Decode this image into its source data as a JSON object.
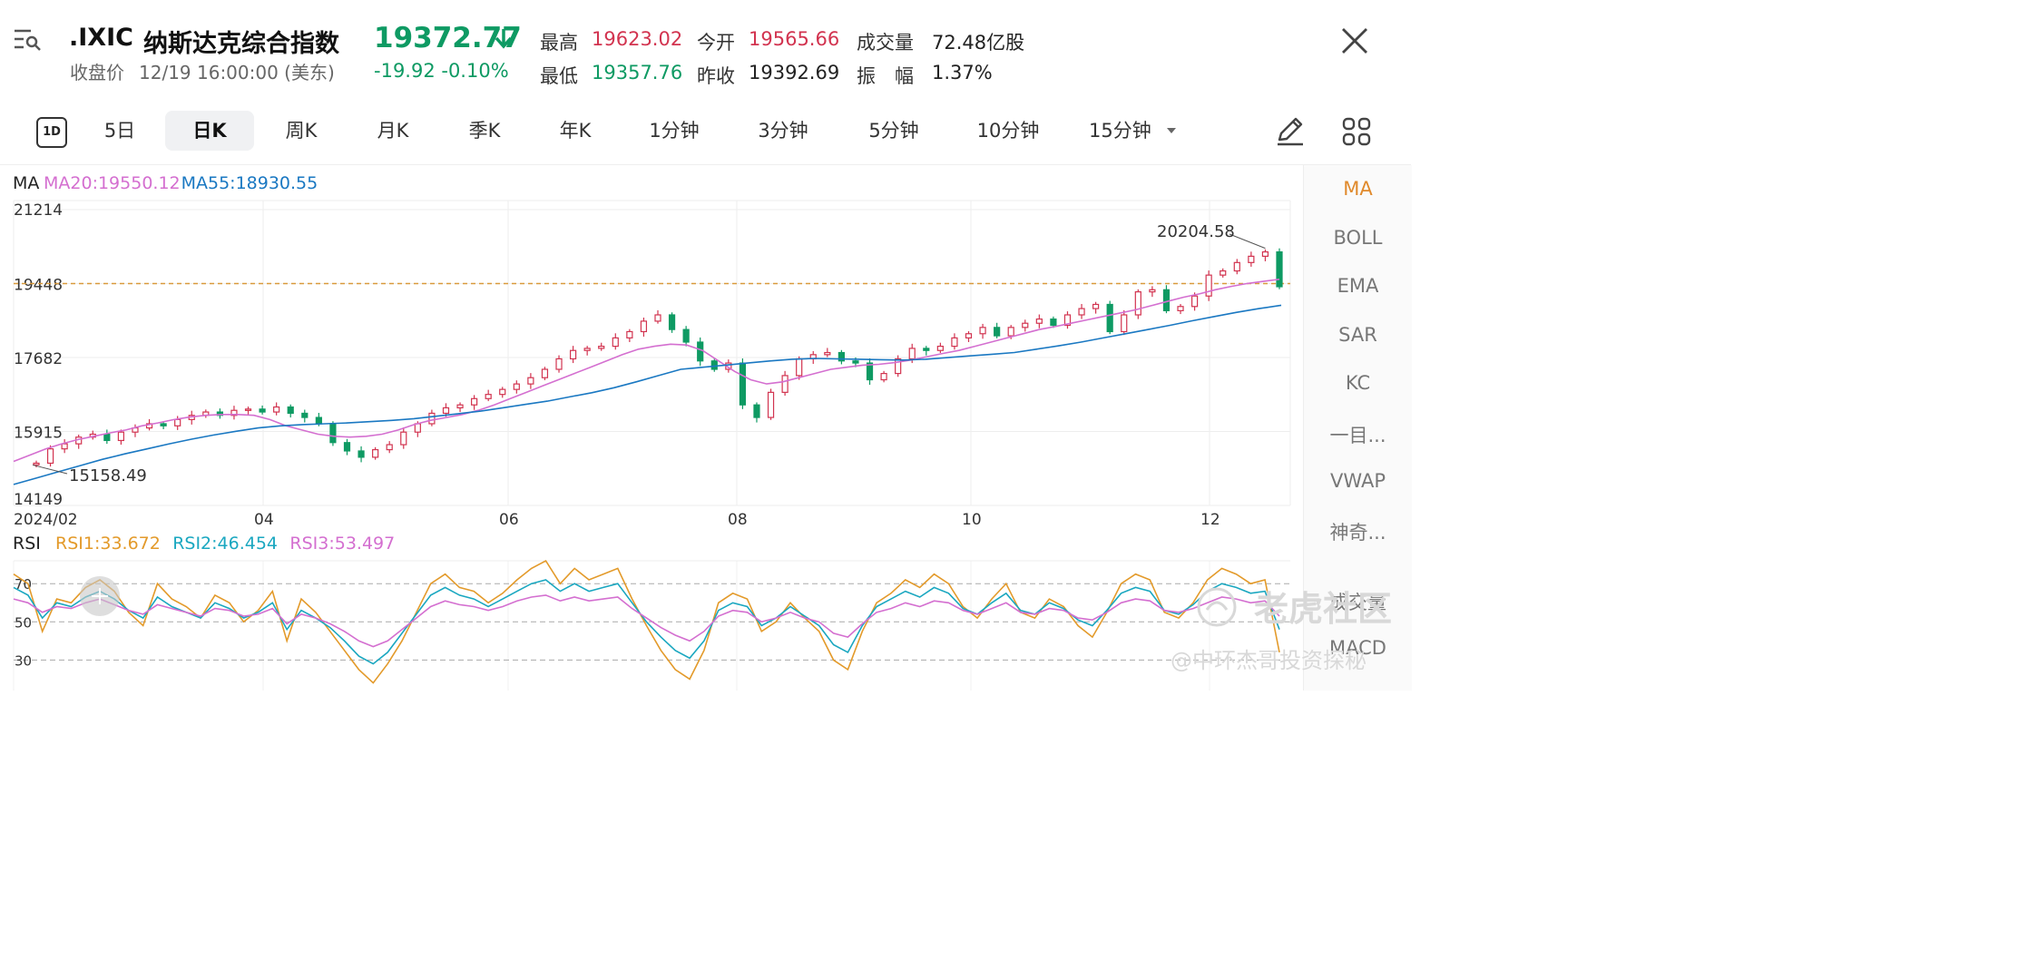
{
  "header": {
    "ticker": ".IXIC",
    "name": "纳斯达克综合指数",
    "price": "19372.77",
    "close_label": "收盘价",
    "close_time": "12/19 16:00:00 (美东)",
    "change": "-19.92 -0.10%",
    "stats": [
      {
        "label": "最高",
        "value": "19623.02",
        "color": "#d2334f"
      },
      {
        "label": "今开",
        "value": "19565.66",
        "color": "#d2334f"
      },
      {
        "label": "成交量",
        "value": "72.48亿股",
        "color": "#222222"
      },
      {
        "label": "最低",
        "value": "19357.76",
        "color": "#0e9a63"
      },
      {
        "label": "昨收",
        "value": "19392.69",
        "color": "#222222"
      },
      {
        "label": "振　幅",
        "value": "1.37%",
        "color": "#222222"
      }
    ]
  },
  "toolbar": {
    "tabs": [
      "5日",
      "日K",
      "周K",
      "月K",
      "季K",
      "年K",
      "1分钟",
      "3分钟",
      "5分钟",
      "10分钟",
      "15分钟"
    ],
    "active_tab": "日K",
    "one_day_label": "1D"
  },
  "sidebar": {
    "items": [
      "MA",
      "BOLL",
      "EMA",
      "SAR",
      "KC",
      "一目...",
      "VWAP",
      "神奇...",
      "成交量",
      "MACD"
    ],
    "active": "MA"
  },
  "watermark": {
    "brand": "老虎社区",
    "author": "@中环杰哥投资探秘"
  },
  "colors": {
    "up": "#d2334f",
    "down": "#0e9a63",
    "ma20": "#d46fd0",
    "ma55": "#1a78c2",
    "rsi1": "#e39a2a",
    "rsi2": "#1aa7c0",
    "rsi3": "#d46fd0",
    "price_line": "#d99a3c"
  },
  "chart_data": [
    {
      "type": "candlestick",
      "legend_title": "MA",
      "legend": [
        {
          "name": "MA20",
          "value": "19550.12"
        },
        {
          "name": "MA55",
          "value": "18930.55"
        }
      ],
      "y_ticks": [
        "21214",
        "19448",
        "17682",
        "15915",
        "14149"
      ],
      "ylim": [
        14149,
        21214
      ],
      "x_ticks": [
        "2024/02",
        "04",
        "06",
        "08",
        "10",
        "12"
      ],
      "current_price_line": 19448,
      "annotations": {
        "high": "20204.58",
        "low": "15158.49"
      },
      "series": [
        {
          "name": "close",
          "values": [
            15158,
            15500,
            15620,
            15780,
            15850,
            15700,
            15900,
            16000,
            16100,
            16050,
            16200,
            16300,
            16380,
            16300,
            16420,
            16450,
            16380,
            16500,
            16350,
            16250,
            16100,
            15650,
            15450,
            15300,
            15480,
            15600,
            15900,
            16100,
            16350,
            16480,
            16550,
            16700,
            16800,
            16920,
            17050,
            17200,
            17400,
            17650,
            17850,
            17900,
            17950,
            18150,
            18300,
            18550,
            18700,
            18350,
            18050,
            17600,
            17400,
            17550,
            16550,
            16250,
            16850,
            17250,
            17650,
            17750,
            17800,
            17600,
            17550,
            17150,
            17300,
            17650,
            17900,
            17850,
            17950,
            18150,
            18250,
            18400,
            18200,
            18400,
            18500,
            18600,
            18450,
            18700,
            18850,
            18950,
            18300,
            18700,
            19250,
            19300,
            18800,
            18900,
            19150,
            19650,
            19750,
            19950,
            20100,
            20204,
            19372
          ]
        },
        {
          "name": "MA20",
          "values": [
            15200,
            15350,
            15500,
            15620,
            15720,
            15800,
            15880,
            15950,
            16050,
            16120,
            16200,
            16260,
            16300,
            16320,
            16320,
            16300,
            16200,
            16050,
            15950,
            15850,
            15800,
            15780,
            15800,
            15850,
            15950,
            16080,
            16180,
            16250,
            16320,
            16420,
            16550,
            16700,
            16850,
            17000,
            17150,
            17300,
            17450,
            17600,
            17750,
            17880,
            17950,
            18000,
            17980,
            17850,
            17600,
            17350,
            17150,
            17050,
            17100,
            17200,
            17300,
            17400,
            17450,
            17500,
            17520,
            17560,
            17620,
            17700,
            17780,
            17850,
            17950,
            18050,
            18150,
            18250,
            18350,
            18420,
            18500,
            18580,
            18660,
            18740,
            18820,
            18920,
            19020,
            19120,
            19200,
            19300,
            19380,
            19450,
            19500,
            19550
          ]
        },
        {
          "name": "MA55",
          "values": [
            14650,
            14800,
            14950,
            15100,
            15250,
            15380,
            15500,
            15620,
            15730,
            15830,
            15920,
            16000,
            16050,
            16080,
            16100,
            16120,
            16150,
            16180,
            16220,
            16280,
            16340,
            16400,
            16480,
            16560,
            16640,
            16740,
            16840,
            16960,
            17100,
            17250,
            17400,
            17450,
            17500,
            17550,
            17600,
            17640,
            17660,
            17650,
            17640,
            17630,
            17620,
            17640,
            17680,
            17720,
            17760,
            17800,
            17880,
            17960,
            18050,
            18150,
            18250,
            18350,
            18450,
            18560,
            18660,
            18760,
            18850,
            18930
          ]
        }
      ]
    },
    {
      "type": "line",
      "legend_title": "RSI",
      "legend": [
        {
          "name": "RSI1",
          "value": "33.672"
        },
        {
          "name": "RSI2",
          "value": "46.454"
        },
        {
          "name": "RSI3",
          "value": "53.497"
        }
      ],
      "y_ticks": [
        "70",
        "50",
        "30"
      ],
      "ylim": [
        14,
        82
      ],
      "series": [
        {
          "name": "RSI1",
          "values": [
            75,
            70,
            45,
            62,
            60,
            68,
            72,
            66,
            55,
            48,
            70,
            62,
            58,
            52,
            64,
            60,
            50,
            56,
            66,
            40,
            62,
            55,
            45,
            35,
            25,
            18,
            28,
            40,
            55,
            70,
            75,
            68,
            66,
            60,
            65,
            72,
            78,
            82,
            70,
            78,
            72,
            75,
            78,
            62,
            48,
            35,
            25,
            20,
            35,
            60,
            65,
            62,
            45,
            50,
            60,
            52,
            45,
            30,
            25,
            45,
            60,
            65,
            72,
            68,
            75,
            70,
            58,
            52,
            62,
            70,
            55,
            52,
            62,
            58,
            48,
            42,
            55,
            70,
            75,
            72,
            55,
            52,
            60,
            72,
            78,
            75,
            70,
            72,
            34
          ]
        },
        {
          "name": "RSI2",
          "values": [
            68,
            64,
            52,
            60,
            58,
            63,
            66,
            62,
            56,
            52,
            63,
            58,
            55,
            52,
            60,
            57,
            52,
            55,
            60,
            46,
            56,
            52,
            47,
            40,
            32,
            28,
            34,
            44,
            54,
            64,
            68,
            64,
            62,
            58,
            62,
            66,
            70,
            72,
            66,
            70,
            66,
            68,
            70,
            60,
            50,
            42,
            35,
            31,
            40,
            56,
            60,
            58,
            48,
            52,
            58,
            53,
            48,
            38,
            34,
            48,
            58,
            62,
            66,
            63,
            68,
            65,
            57,
            54,
            60,
            65,
            56,
            54,
            60,
            57,
            51,
            48,
            56,
            65,
            68,
            66,
            56,
            54,
            59,
            66,
            70,
            68,
            65,
            66,
            46
          ]
        },
        {
          "name": "RSI3",
          "values": [
            62,
            60,
            55,
            58,
            57,
            60,
            62,
            59,
            56,
            54,
            59,
            57,
            55,
            53,
            57,
            56,
            53,
            54,
            57,
            49,
            54,
            52,
            49,
            45,
            40,
            37,
            40,
            46,
            52,
            58,
            61,
            59,
            58,
            56,
            58,
            61,
            63,
            64,
            61,
            63,
            61,
            62,
            63,
            57,
            52,
            47,
            43,
            40,
            45,
            53,
            56,
            55,
            50,
            52,
            55,
            52,
            50,
            44,
            42,
            49,
            55,
            57,
            60,
            58,
            61,
            60,
            56,
            54,
            57,
            60,
            55,
            54,
            57,
            56,
            52,
            51,
            55,
            60,
            62,
            61,
            56,
            55,
            57,
            60,
            63,
            62,
            60,
            61,
            53
          ]
        }
      ]
    }
  ]
}
